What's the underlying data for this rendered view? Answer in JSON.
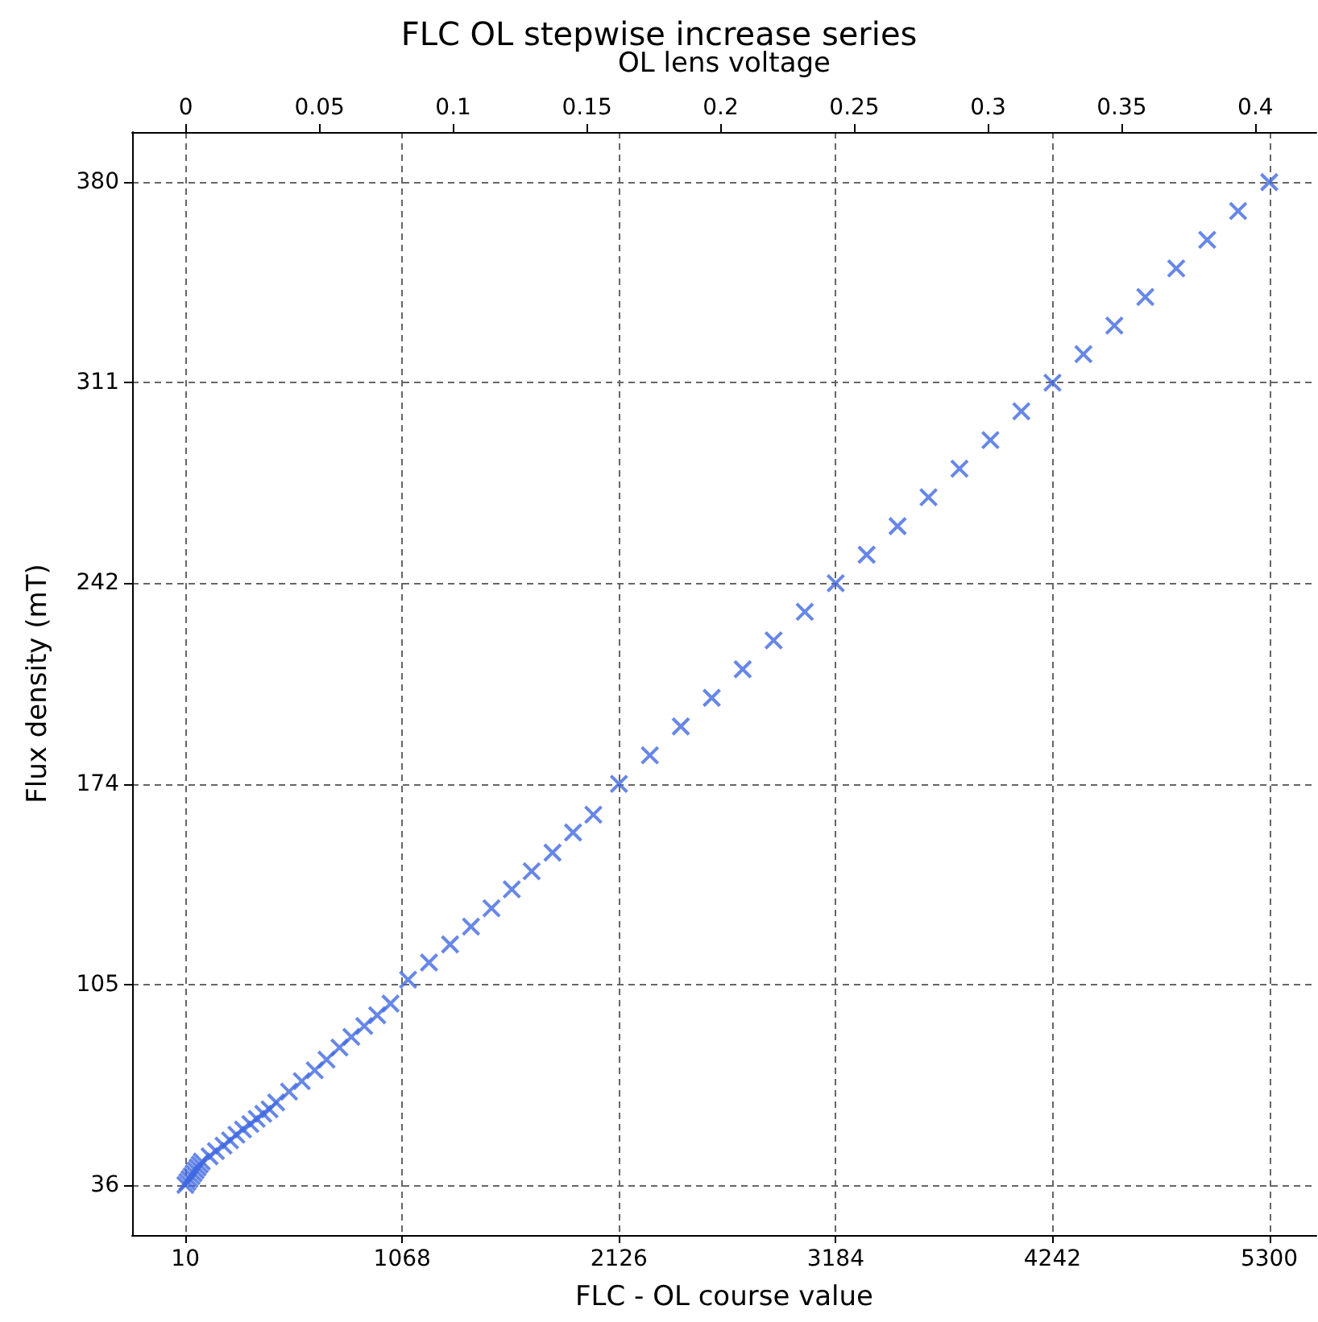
{
  "chart_data": {
    "type": "scatter",
    "title": "FLC OL stepwise increase series",
    "xlabel": "FLC - OL course value",
    "ylabel": "Flux density (mT)",
    "x2label": "OL lens voltage",
    "marker": "cross",
    "grid": true,
    "xlim": [
      -250,
      5530
    ],
    "xticks": [
      10,
      1068,
      2126,
      3184,
      4242,
      5300
    ],
    "x2lim": [
      -0.0201,
      0.4228
    ],
    "x2ticks": [
      0,
      0.05,
      0.1,
      0.15,
      0.2,
      0.25,
      0.3,
      0.35,
      0.4
    ],
    "ylim": [
      18.8,
      397.2
    ],
    "yticks": [
      36,
      {
        "value": 104.8,
        "label": "105"
      },
      {
        "value": 173.6,
        "label": "174"
      },
      {
        "value": 242.4,
        "label": "242"
      },
      {
        "value": 311.2,
        "label": "311"
      },
      380
    ],
    "series": [
      {
        "color": "#4169e1",
        "x": [
          10,
          20,
          30,
          40,
          50,
          60,
          70,
          80,
          90,
          128,
          159,
          196,
          228,
          259,
          291,
          327,
          358,
          390,
          421,
          453,
          516,
          578,
          641,
          699,
          762,
          820,
          883,
          946,
          1011,
          1097,
          1199,
          1302,
          1404,
          1504,
          1603,
          1700,
          1802,
          1902,
          2001,
          2126,
          2277,
          2428,
          2579,
          2730,
          2881,
          3033,
          3184,
          3335,
          3486,
          3637,
          3788,
          3939,
          4090,
          4242,
          4393,
          4544,
          4695,
          4846,
          4997,
          5148,
          5300
        ],
        "values": [
          36,
          37,
          38,
          39,
          40,
          41,
          42,
          43,
          44,
          45.8,
          47.6,
          49.5,
          51.3,
          53.2,
          55,
          56.9,
          58.7,
          60.4,
          61.9,
          64.3,
          68,
          71.6,
          75.3,
          79,
          83.1,
          86.8,
          90.5,
          94.2,
          98.2,
          106.4,
          112.3,
          118.5,
          124.6,
          130.9,
          137.4,
          143.6,
          150,
          156.9,
          163,
          173.6,
          183.4,
          193.3,
          203.1,
          212.9,
          222.8,
          232.6,
          242.4,
          252.2,
          262,
          271.9,
          281.7,
          291.5,
          301.4,
          311.2,
          321,
          330.8,
          340.6,
          350.4,
          360.2,
          370.1,
          380
        ]
      }
    ]
  }
}
